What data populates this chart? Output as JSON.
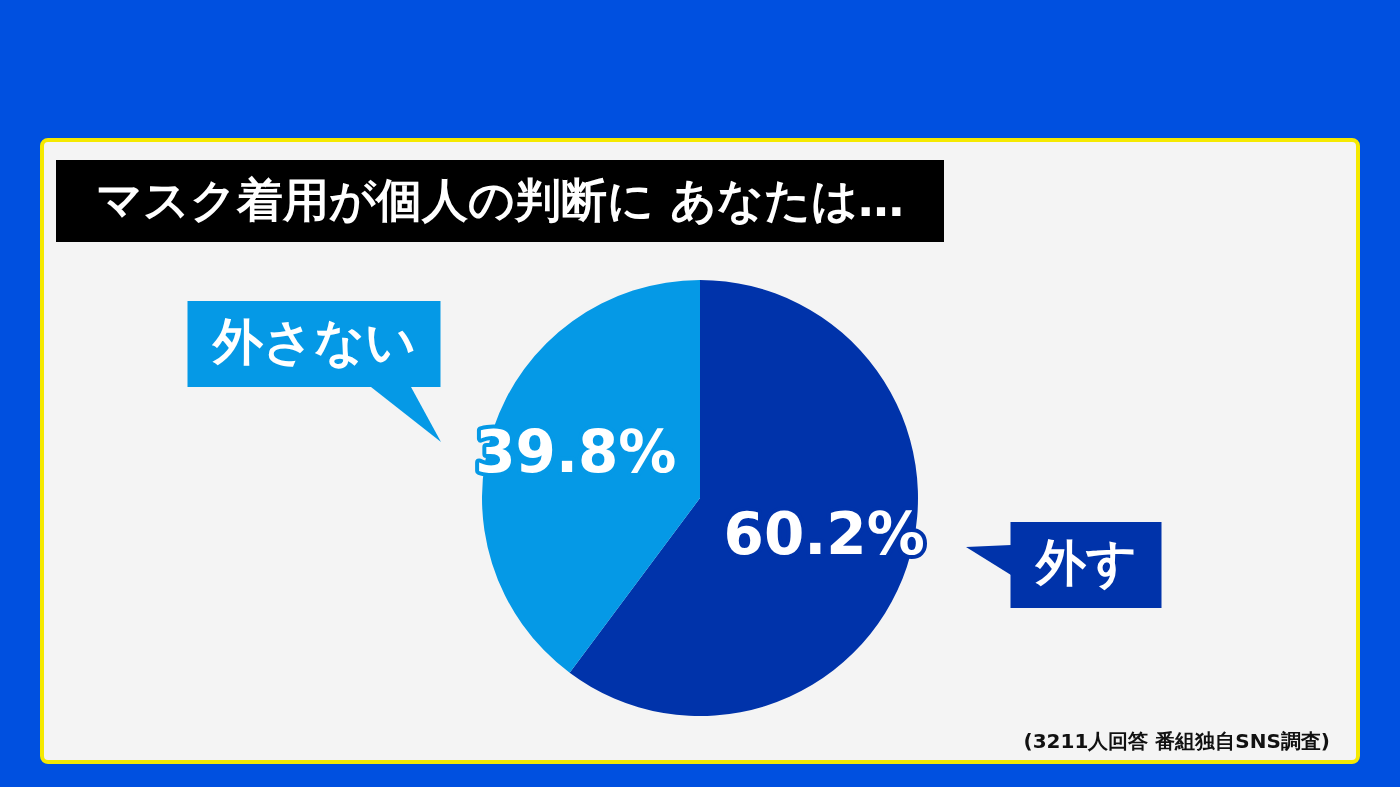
{
  "chart_data": {
    "type": "pie",
    "title": "マスク着用が個人の判断に あなたは…",
    "categories": [
      "外す",
      "外さない"
    ],
    "values": [
      60.2,
      39.8
    ],
    "colors": [
      "#0033aa",
      "#0599e6"
    ],
    "value_labels": [
      "60.2%",
      "39.8%"
    ],
    "annotations": [
      "(3211人回答 番組独自SNS調査)"
    ]
  }
}
